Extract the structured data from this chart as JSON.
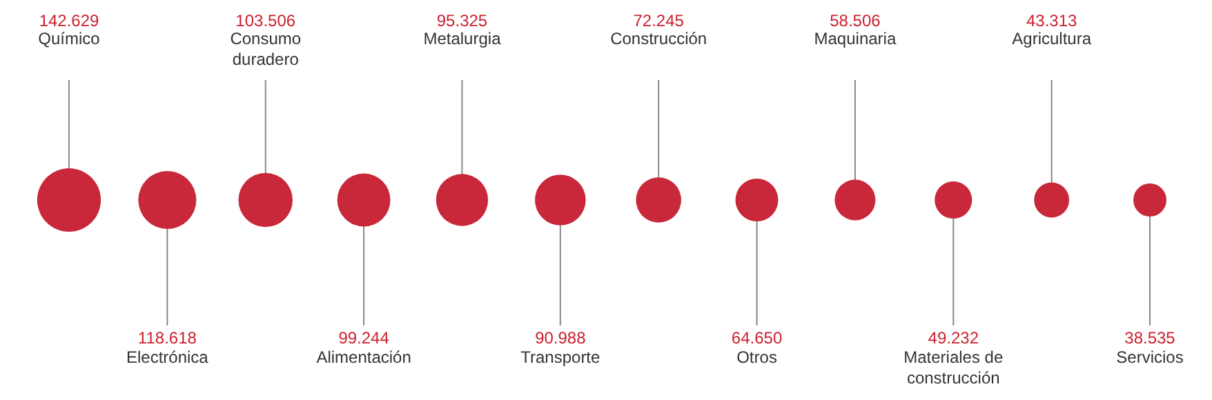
{
  "chart_data": {
    "type": "other",
    "categories": [
      "Químico",
      "Electrónica",
      "Consumo\nduradero",
      "Alimentación",
      "Metalurgia",
      "Transporte",
      "Construcción",
      "Otros",
      "Maquinaria",
      "Materiales de\nconstrucción",
      "Agricultura",
      "Servicios"
    ],
    "values": [
      142629,
      118618,
      103506,
      99244,
      95325,
      90988,
      72245,
      64650,
      58506,
      49232,
      43313,
      38535
    ],
    "value_labels": [
      "142.629",
      "118.618",
      "103.506",
      "99.244",
      "95.325",
      "90.988",
      "72.245",
      "64.650",
      "58.506",
      "49.232",
      "43.313",
      "38.535"
    ],
    "color": "#c8283a"
  }
}
